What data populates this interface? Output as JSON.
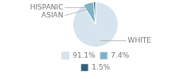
{
  "chart_data": {
    "type": "pie",
    "categories": [
      "WHITE",
      "ASIAN",
      "HISPANIC"
    ],
    "values": [
      91.1,
      7.4,
      1.5
    ],
    "value_labels": [
      "91.1%",
      "7.4%",
      "1.5%"
    ],
    "colors": [
      "#d6e4ee",
      "#7ab4c8",
      "#2e5f7a"
    ],
    "legend": "bottom"
  }
}
